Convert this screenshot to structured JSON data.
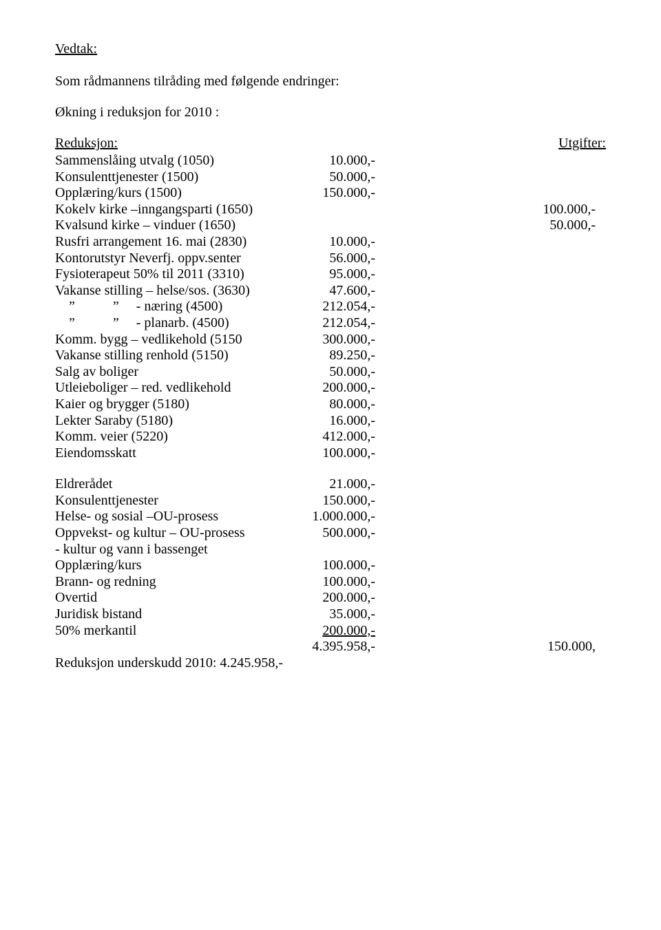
{
  "title": "Vedtak:",
  "intro1": "Som rådmannens tilråding med følgende endringer:",
  "intro2": "Økning i reduksjon for 2010 :",
  "header_left": "Reduksjon:",
  "header_right": "Utgifter:",
  "rows1": [
    {
      "label": "Sammenslåing utvalg (1050)",
      "val": "10.000,-"
    },
    {
      "label": "Konsulenttjenester (1500)",
      "val": "50.000,-"
    },
    {
      "label": "Opplæring/kurs (1500)",
      "val": "150.000,-"
    },
    {
      "label": "Kokelv kirke –inngangsparti (1650)",
      "val": "",
      "val2": "100.000,-"
    },
    {
      "label": "Kvalsund kirke – vinduer (1650)",
      "val": "",
      "val2": "50.000,-"
    },
    {
      "label": "Rusfri arrangement 16. mai (2830)",
      "val": "10.000,-"
    },
    {
      "label": "Kontorutstyr Neverfj. oppv.senter",
      "val": "56.000,-"
    },
    {
      "label": "Fysioterapeut 50% til 2011 (3310)",
      "val": "95.000,-"
    },
    {
      "label": "Vakanse stilling – helse/sos. (3630)",
      "val": "47.600,-"
    },
    {
      "label": "    ”           ”     - næring (4500)",
      "val": "212.054,-"
    },
    {
      "label": "    ”           ”     - planarb. (4500)",
      "val": "212.054,-"
    },
    {
      "label": "Komm. bygg – vedlikehold (5150",
      "val": "300.000,-"
    },
    {
      "label": "Vakanse stilling renhold (5150)",
      "val": "89.250,-"
    },
    {
      "label": "Salg av boliger",
      "val": "50.000,-"
    },
    {
      "label": "Utleieboliger – red. vedlikehold",
      "val": "200.000,-"
    },
    {
      "label": "Kaier og brygger (5180)",
      "val": "80.000,-"
    },
    {
      "label": "Lekter Saraby (5180)",
      "val": "16.000,-"
    },
    {
      "label": "Komm. veier (5220)",
      "val": "412.000,-"
    },
    {
      "label": "Eiendomsskatt",
      "val": "100.000,-"
    }
  ],
  "rows2": [
    {
      "label": "Eldrerådet",
      "val": "21.000,-"
    },
    {
      "label": "Konsulenttjenester",
      "val": "150.000,-"
    },
    {
      "label": "Helse- og sosial –OU-prosess",
      "val": "1.000.000,-"
    },
    {
      "label": "Oppvekst- og kultur – OU-prosess",
      "val": "500.000,-"
    },
    {
      "label": "- kultur og vann i bassenget",
      "val": ""
    },
    {
      "label": "Opplæring/kurs",
      "val": "100.000,-"
    },
    {
      "label": "Brann- og redning",
      "val": "100.000,-"
    },
    {
      "label": "Overtid",
      "val": "200.000,-"
    },
    {
      "label": "Juridisk bistand",
      "val": "35.000,-"
    },
    {
      "label": "50% merkantil",
      "val": "200.000,-",
      "underline": true
    }
  ],
  "total": {
    "label": "",
    "val": "4.395.958,-",
    "val2": "150.000,"
  },
  "final": "Reduksjon underskudd 2010:  4.245.958,-"
}
